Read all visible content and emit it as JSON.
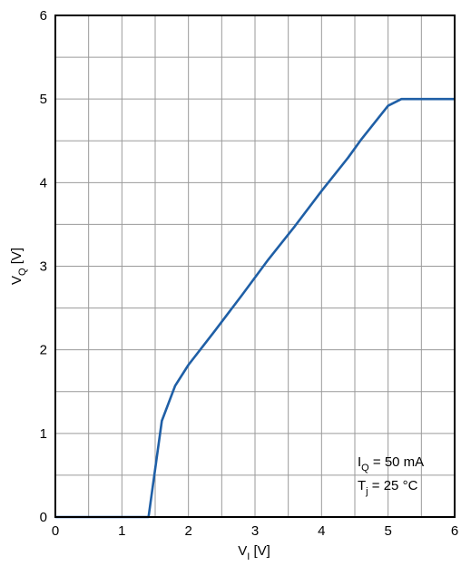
{
  "chart_data": {
    "type": "line",
    "xlabel": {
      "main": "V",
      "sub": "I",
      "unit": " [V]"
    },
    "ylabel": {
      "main": "V",
      "sub": "Q",
      "unit": " [V]"
    },
    "xlim": [
      0,
      6
    ],
    "ylim": [
      0,
      6
    ],
    "xticks": [
      "0",
      "1",
      "2",
      "3",
      "4",
      "5",
      "6"
    ],
    "yticks": [
      "0",
      "1",
      "2",
      "3",
      "4",
      "5",
      "6"
    ],
    "grid": true,
    "grid_minor_x": 0.5,
    "grid_minor_y": 0.5,
    "line_color": "#1f5fa6",
    "series": [
      {
        "x": [
          0,
          1.4,
          1.6,
          1.8,
          2.0,
          2.4,
          2.8,
          3.2,
          3.6,
          4.0,
          4.4,
          4.6,
          5.0,
          5.2,
          5.6,
          6.0
        ],
        "y": [
          0,
          0,
          1.15,
          1.57,
          1.82,
          2.23,
          2.65,
          3.08,
          3.48,
          3.9,
          4.3,
          4.52,
          4.92,
          5.0,
          5.0,
          5.0
        ]
      }
    ],
    "annotation": {
      "line1": {
        "main": "I",
        "sub": "Q",
        "rest": " = 50 mA"
      },
      "line2": {
        "main": "T",
        "sub": "j",
        "rest": " = 25 °C"
      }
    }
  }
}
